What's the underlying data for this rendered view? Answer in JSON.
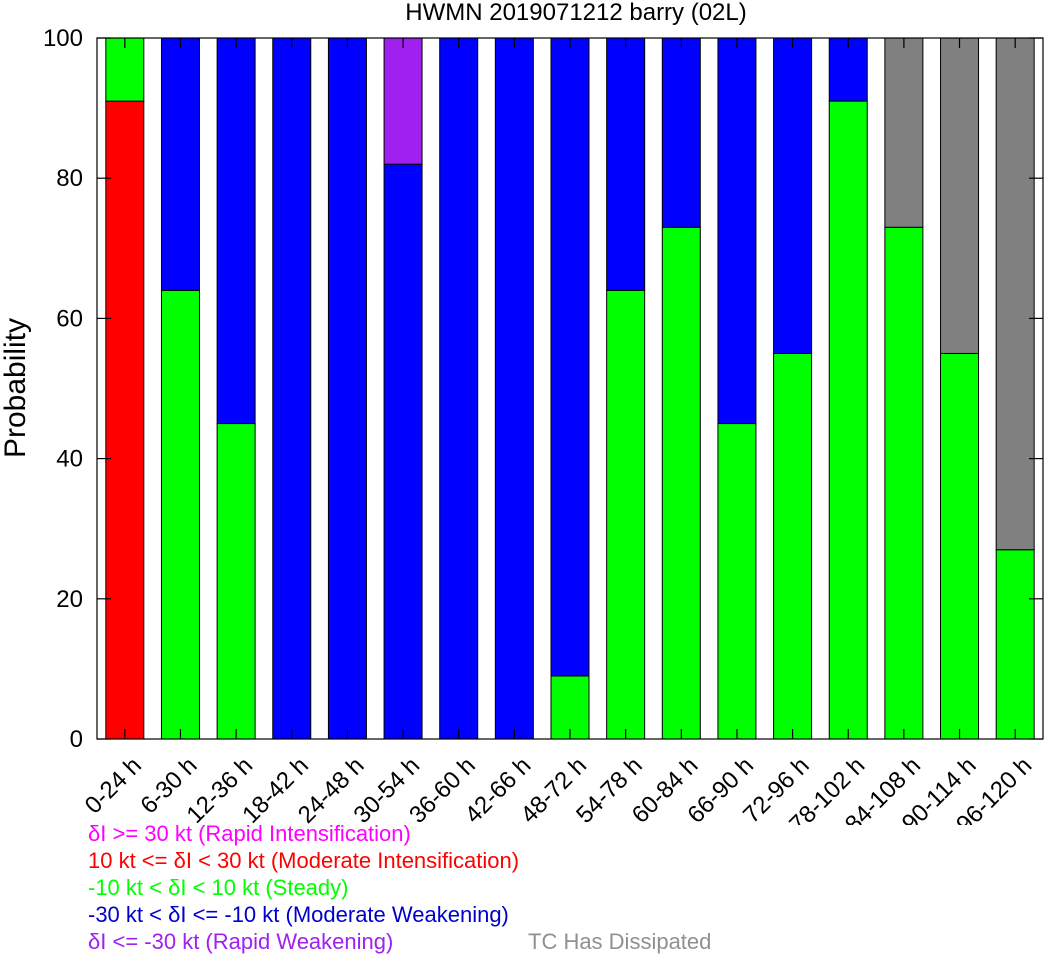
{
  "chart_data": {
    "type": "bar",
    "stacked": true,
    "title": "HWMN 2019071212 barry (02L)",
    "xlabel": "",
    "ylabel": "Probability",
    "ylim": [
      0,
      100
    ],
    "yticks": [
      0,
      20,
      40,
      60,
      80,
      100
    ],
    "categories": [
      "0-24 h",
      "6-30 h",
      "12-36 h",
      "18-42 h",
      "24-48 h",
      "30-54 h",
      "36-60 h",
      "42-66 h",
      "48-72 h",
      "54-78 h",
      "60-84 h",
      "66-90 h",
      "72-96 h",
      "78-102 h",
      "84-108 h",
      "90-114 h",
      "96-120 h"
    ],
    "series": [
      {
        "name": "δI >= 30 kt (Rapid Intensification)",
        "color": "#ff00ff",
        "values": [
          0,
          0,
          0,
          0,
          0,
          0,
          0,
          0,
          0,
          0,
          0,
          0,
          0,
          0,
          0,
          0,
          0
        ]
      },
      {
        "name": "10 kt <= δI < 30 kt (Moderate Intensification)",
        "color": "#ff0000",
        "values": [
          91,
          0,
          0,
          0,
          0,
          0,
          0,
          0,
          0,
          0,
          0,
          0,
          0,
          0,
          0,
          0,
          0
        ]
      },
      {
        "name": "-10 kt < δI < 10 kt (Steady)",
        "color": "#00ff00",
        "values": [
          9,
          64,
          45,
          0,
          0,
          0,
          0,
          0,
          9,
          64,
          73,
          45,
          55,
          91,
          73,
          55,
          27
        ]
      },
      {
        "name": "-30 kt < δI <= -10 kt (Moderate Weakening)",
        "color": "#0000ff",
        "values": [
          0,
          36,
          55,
          100,
          100,
          82,
          100,
          100,
          91,
          36,
          27,
          55,
          45,
          9,
          0,
          0,
          0
        ]
      },
      {
        "name": "δI <= -30 kt (Rapid Weakening)",
        "color": "#a020f0",
        "values": [
          0,
          0,
          0,
          0,
          0,
          18,
          0,
          0,
          0,
          0,
          0,
          0,
          0,
          0,
          0,
          0,
          0
        ]
      },
      {
        "name": "TC Has Dissipated",
        "color": "#808080",
        "values": [
          0,
          0,
          0,
          0,
          0,
          0,
          0,
          0,
          0,
          0,
          0,
          0,
          0,
          0,
          27,
          45,
          73
        ]
      }
    ],
    "grid": false,
    "legend_position": "bottom-left"
  },
  "legend": [
    {
      "label": "δI >= 30 kt (Rapid Intensification)",
      "color": "#ff00ff"
    },
    {
      "label": "10 kt <= δI < 30 kt (Moderate Intensification)",
      "color": "#ff0000"
    },
    {
      "label": "-10 kt < δI < 10 kt (Steady)",
      "color": "#00ff00"
    },
    {
      "label": "-30 kt < δI <= -10 kt (Moderate Weakening)",
      "color": "#0000cc"
    },
    {
      "label": "δI <= -30 kt (Rapid Weakening)",
      "color": "#a020f0"
    },
    {
      "label": "TC Has Dissipated",
      "color": "#909090"
    }
  ]
}
